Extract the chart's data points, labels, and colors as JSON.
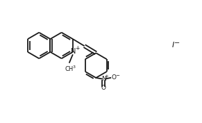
{
  "bg_color": "#ffffff",
  "line_color": "#1a1a1a",
  "line_width": 1.3,
  "figsize": [
    2.91,
    1.77
  ],
  "dpi": 100,
  "xlim": [
    0,
    10
  ],
  "ylim": [
    0,
    6.1
  ]
}
